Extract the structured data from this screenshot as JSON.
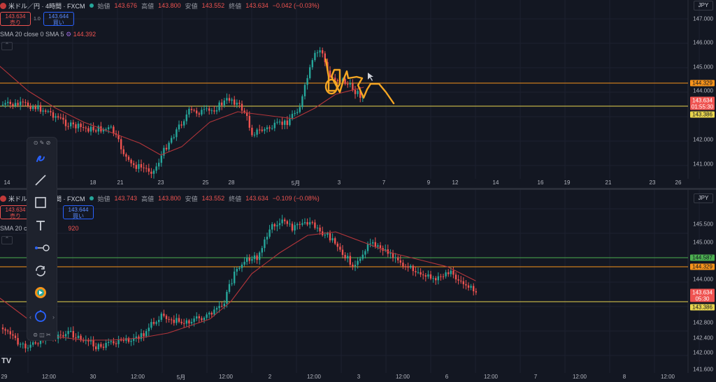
{
  "top": {
    "symbol": "米ドル／円 · 4時間 · FXCM",
    "ohlc": {
      "open_label": "始値",
      "open": "143.676",
      "high_label": "高値",
      "high": "143.800",
      "low_label": "安値",
      "low": "143.552",
      "close_label": "終値",
      "close": "143.634",
      "change": "−0.042 (−0.03%)"
    },
    "sell": {
      "price": "143.634",
      "label": "売り"
    },
    "spread": "1.0",
    "buy": {
      "price": "143.644",
      "label": "買い"
    },
    "sma_label": "SMA 20 close 0 SMA 5",
    "sma_value": "144.392",
    "currency": "JPY",
    "y_ticks": [
      "147.000",
      "146.000",
      "145.000",
      "144.000",
      "143.000",
      "142.000",
      "141.000"
    ],
    "price_tags": {
      "orange": "144.329",
      "red": "143.634",
      "countdown": "01:55:30",
      "yellow": "143.386"
    },
    "x_ticks": [
      "14",
      "15",
      "18",
      "21",
      "23",
      "25",
      "28",
      "5月",
      "3",
      "7",
      "9",
      "12",
      "14",
      "16",
      "19",
      "21",
      "23",
      "26"
    ]
  },
  "bottom": {
    "symbol": "米ドル／円 · 4時間 · FXCM",
    "ohlc": {
      "open_label": "始値",
      "open": "143.743",
      "high_label": "高値",
      "high": "143.800",
      "low_label": "安値",
      "low": "143.552",
      "close_label": "終値",
      "close": "143.634",
      "change": "−0.109 (−0.08%)"
    },
    "sell": {
      "price": "143.634",
      "label": "売り"
    },
    "buy": {
      "price": "143.644",
      "label": "買い"
    },
    "sma_label": "SMA 20 close",
    "sma_value": "920",
    "currency": "JPY",
    "y_ticks": [
      "145.500",
      "145.000",
      "144.000",
      "142.800",
      "142.400",
      "142.000",
      "141.600"
    ],
    "price_tags": {
      "green": "144.587",
      "orange": "144.329",
      "red": "143.634",
      "countdown": "05:30",
      "yellow": "143.386"
    },
    "x_ticks": [
      "29",
      "12:00",
      "30",
      "12:00",
      "5月",
      "12:00",
      "2",
      "12:00",
      "3",
      "12:00",
      "6",
      "12:00",
      "7",
      "12:00",
      "8",
      "12:00"
    ]
  },
  "colors": {
    "bg": "#131722",
    "up": "#26a69a",
    "down": "#ef5350",
    "sma": "#b2353a",
    "orange": "#f7931a",
    "yellow": "#e8d44d",
    "green": "#4caf50",
    "drawing": "#f5a623"
  },
  "toolbar": {
    "icons": [
      "pen-icon",
      "line-icon",
      "rectangle-icon",
      "text-icon",
      "connector-icon",
      "rotate-icon",
      "record-icon",
      "timer-icon"
    ]
  },
  "logo": "TV"
}
